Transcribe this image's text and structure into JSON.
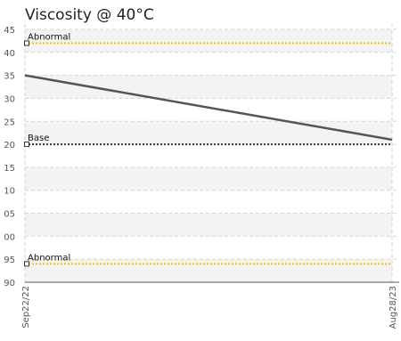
{
  "chart_data": {
    "type": "line",
    "title": "Viscosity @ 40°C",
    "xlabel": "",
    "ylabel": "",
    "x": [
      "Sep22/22",
      "Aug28/23"
    ],
    "series": [
      {
        "values": [
          35,
          21
        ],
        "color": "#555555"
      }
    ],
    "reference_lines": [
      {
        "label": "Abnormal",
        "value": 42,
        "color": "#f5c400",
        "style": "dotted"
      },
      {
        "label": "Base",
        "value": 20,
        "color": "#333333",
        "style": "dotted"
      },
      {
        "label": "Abnormal",
        "value": 94,
        "display_position": "lower",
        "color": "#f5c400",
        "style": "dotted"
      }
    ],
    "y_ticks": [
      "45",
      "40",
      "35",
      "30",
      "25",
      "20",
      "15",
      "10",
      "05",
      "00",
      "95",
      "90"
    ],
    "grid": true,
    "grid_style": "dashed",
    "band_colors": [
      "#f3f3f3",
      "#ffffff"
    ],
    "legend": "none"
  }
}
